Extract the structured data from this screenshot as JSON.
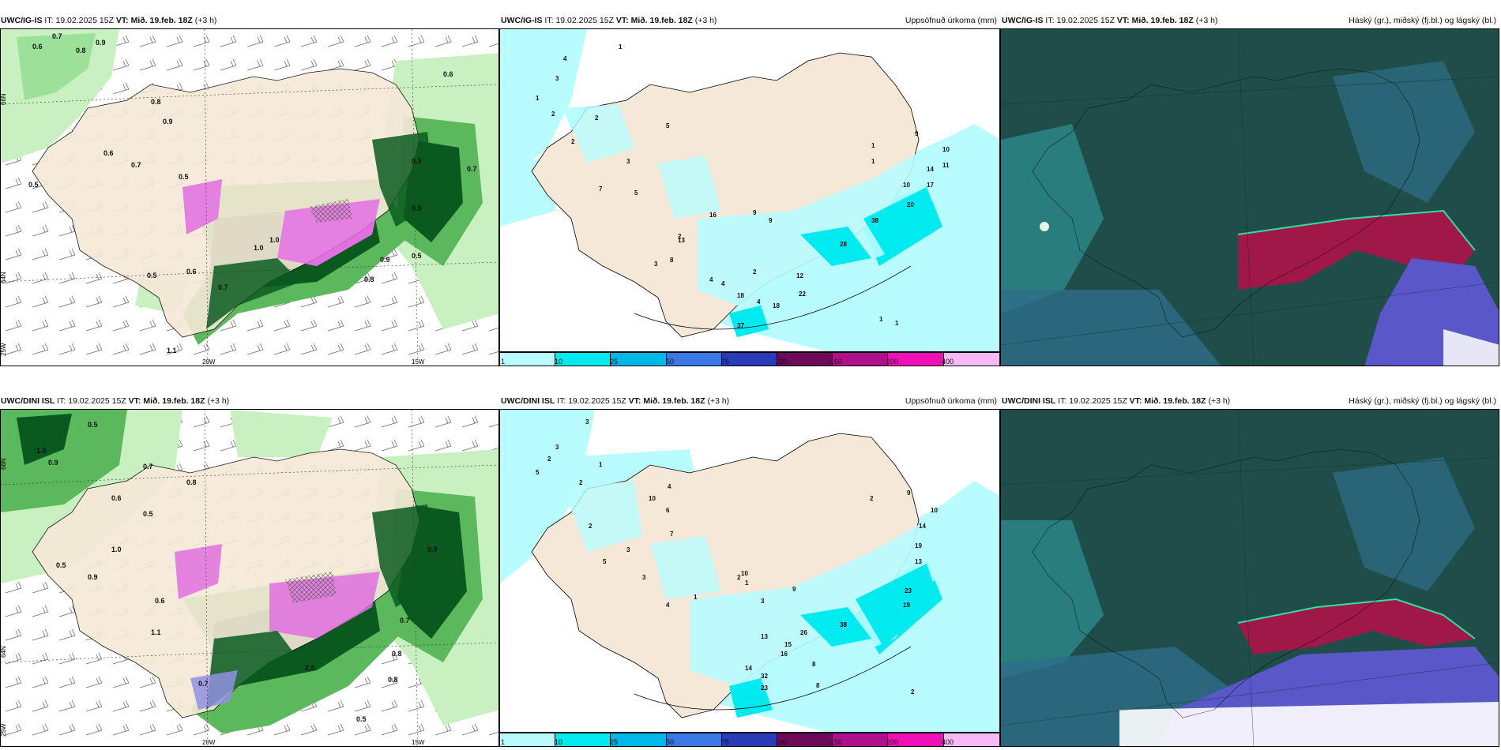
{
  "rows": [
    {
      "model": "UWC/IG-IS",
      "it_label": "IT:",
      "it_value": "19.02.2025 15Z",
      "vt_label": "VT:",
      "vt_value": "Mið. 19.feb. 18Z",
      "lead": "(+3 h)"
    },
    {
      "model": "UWC/DINI ISL",
      "it_label": "IT:",
      "it_value": "19.02.2025 15Z",
      "vt_label": "VT:",
      "vt_value": "Mið. 19.feb. 18Z",
      "lead": "(+3 h)"
    }
  ],
  "precip_title": "Uppsöfnuð úrkoma (mm)",
  "cloud_title": "Háský (gr.), miðský (fj.bl.) og lágský (bl.)",
  "colorbar": {
    "ticks": [
      "1",
      "10",
      "25",
      "50",
      "75",
      "100",
      "150",
      "200",
      "400"
    ],
    "colors": [
      "#b8fcff",
      "#00eaf0",
      "#00b8e8",
      "#3a78e6",
      "#2a3cb8",
      "#6e0a5a",
      "#b0108c",
      "#f010b8",
      "#f8b8f8"
    ]
  },
  "axis_labels": {
    "lat_66": "66N",
    "lat_64": "64N",
    "lon_20": "20W",
    "lon_15": "15W",
    "lon_25": "25W"
  },
  "colors": {
    "land": "#f6e8d8",
    "sea_precip": "#ffffff",
    "light_cyan": "#b8fcff",
    "cyan": "#00eaf0",
    "green_light": "#c8f0c0",
    "green_mid": "#5cb85c",
    "green_dark": "#0a5a20",
    "magenta": "#e070e0",
    "cloud_base": "#1f4e4a",
    "cloud_teal": "#2d8a8a",
    "cloud_red": "#a01848",
    "cloud_blue": "#5a58c8"
  },
  "map_labels_wind": {
    "top": [
      "0.6",
      "0.7",
      "0.8",
      "0.9",
      "0.5",
      "0.6",
      "0.8",
      "0.5",
      "0.9",
      "0.7",
      "1.0",
      "0.6",
      "0.5",
      "0.7",
      "1.1",
      "0.5",
      "0.8",
      "0.9",
      "0.6",
      "0.5",
      "0.7",
      "1.0",
      "0.9"
    ],
    "bottom": [
      "0.5",
      "0.9",
      "1.0",
      "0.7",
      "0.8",
      "0.6",
      "0.5",
      "1.1",
      "0.9",
      "0.7",
      "1.0",
      "0.5",
      "0.6",
      "0.8",
      "0.7",
      "2.5",
      "0.5",
      "0.9",
      "0.8"
    ]
  },
  "map_labels_precip": {
    "top": [
      "4",
      "3",
      "1",
      "2",
      "1",
      "2",
      "5",
      "3",
      "7",
      "5",
      "9",
      "8",
      "2",
      "3",
      "2",
      "16",
      "13",
      "9",
      "4",
      "4",
      "2",
      "12",
      "18",
      "22",
      "18",
      "37",
      "4",
      "1",
      "1",
      "9",
      "10",
      "11",
      "14",
      "17",
      "10",
      "20",
      "38",
      "28",
      "1",
      "1"
    ],
    "bottom": [
      "3",
      "3",
      "2",
      "5",
      "1",
      "2",
      "4",
      "10",
      "6",
      "7",
      "2",
      "3",
      "5",
      "4",
      "3",
      "1",
      "1",
      "3",
      "2",
      "9",
      "10",
      "13",
      "26",
      "15",
      "32",
      "23",
      "14",
      "16",
      "38",
      "8",
      "2",
      "9",
      "10",
      "14",
      "19",
      "13",
      "23",
      "19",
      "8",
      "2"
    ]
  }
}
